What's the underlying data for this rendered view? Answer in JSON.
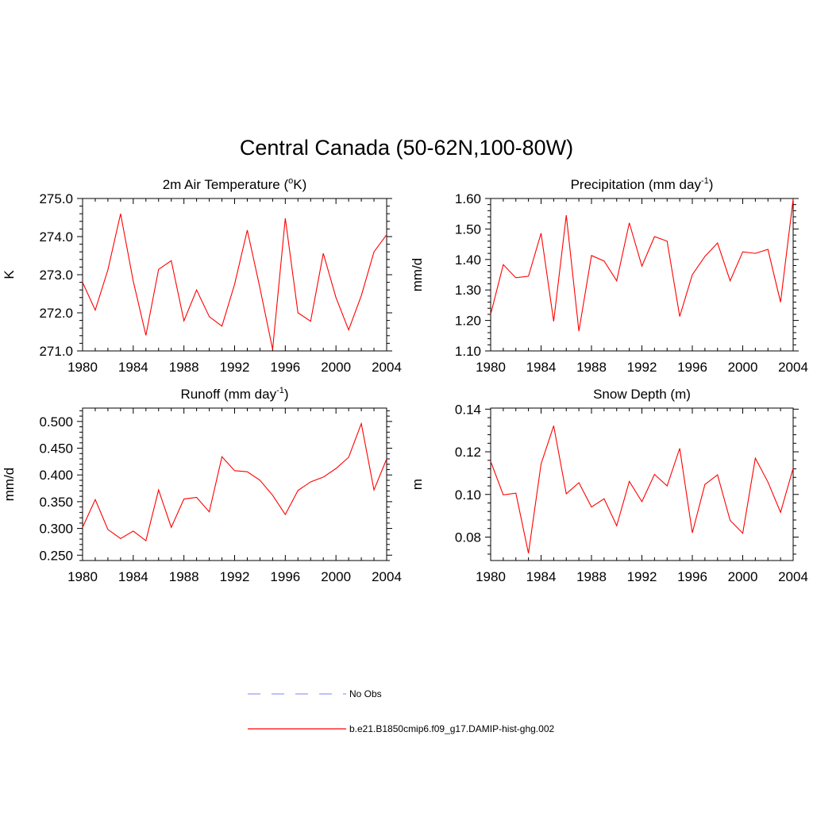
{
  "figure": {
    "title": "Central Canada (50-62N,100-80W)"
  },
  "legend": {
    "placement": "bottom-center",
    "entries": [
      {
        "label": "No Obs",
        "color": "#9999ff",
        "style": "dashed"
      },
      {
        "label": "b.e21.B1850cmip6.f09_g17.DAMIP-hist-ghg.002",
        "color": "#ff0000",
        "style": "solid"
      }
    ]
  },
  "chart_data": [
    {
      "type": "line",
      "title": "2m Air Temperature (",
      "title_sup": "o",
      "title_after": "K)",
      "xlabel": "",
      "ylabel": "K",
      "xlim": [
        1980,
        2004
      ],
      "ylim": [
        271.0,
        275.0
      ],
      "xticks": [
        "1980",
        "1984",
        "1988",
        "1992",
        "1996",
        "2000",
        "2004"
      ],
      "yticks": [
        "271.0",
        "272.0",
        "273.0",
        "274.0",
        "275.0"
      ],
      "x": [
        1980,
        1981,
        1982,
        1983,
        1984,
        1985,
        1986,
        1987,
        1988,
        1989,
        1990,
        1991,
        1992,
        1993,
        1994,
        1995,
        1996,
        1997,
        1998,
        1999,
        2000,
        2001,
        2002,
        2003,
        2004
      ],
      "series": [
        {
          "name": "b.e21.B1850cmip6.f09_g17.DAMIP-hist-ghg.002",
          "color": "#ff0000",
          "values": [
            272.8,
            272.07,
            273.13,
            274.6,
            272.83,
            271.41,
            273.14,
            273.37,
            271.79,
            272.6,
            271.9,
            271.65,
            272.75,
            274.17,
            272.65,
            271.04,
            274.48,
            272.0,
            271.78,
            273.56,
            272.4,
            271.55,
            272.45,
            273.6,
            274.05
          ]
        }
      ]
    },
    {
      "type": "line",
      "title": "Precipitation (mm day",
      "title_sup": "-1",
      "title_after": ")",
      "xlabel": "",
      "ylabel": "mm/d",
      "xlim": [
        1980,
        2004
      ],
      "ylim": [
        1.1,
        1.6
      ],
      "xticks": [
        "1980",
        "1984",
        "1988",
        "1992",
        "1996",
        "2000",
        "2004"
      ],
      "yticks": [
        "1.10",
        "1.20",
        "1.30",
        "1.40",
        "1.50",
        "1.60"
      ],
      "x": [
        1980,
        1981,
        1982,
        1983,
        1984,
        1985,
        1986,
        1987,
        1988,
        1989,
        1990,
        1991,
        1992,
        1993,
        1994,
        1995,
        1996,
        1997,
        1998,
        1999,
        2000,
        2001,
        2002,
        2003,
        2004
      ],
      "series": [
        {
          "name": "b.e21.B1850cmip6.f09_g17.DAMIP-hist-ghg.002",
          "color": "#ff0000",
          "values": [
            1.22,
            1.383,
            1.34,
            1.345,
            1.486,
            1.197,
            1.545,
            1.165,
            1.413,
            1.395,
            1.33,
            1.52,
            1.378,
            1.475,
            1.46,
            1.213,
            1.35,
            1.41,
            1.454,
            1.33,
            1.425,
            1.42,
            1.433,
            1.26,
            1.598
          ]
        }
      ]
    },
    {
      "type": "line",
      "title": "Runoff (mm day",
      "title_sup": "-1",
      "title_after": ")",
      "xlabel": "",
      "ylabel": "mm/d",
      "xlim": [
        1980,
        2004
      ],
      "ylim": [
        0.24,
        0.525
      ],
      "xticks": [
        "1980",
        "1984",
        "1988",
        "1992",
        "1996",
        "2000",
        "2004"
      ],
      "yticks": [
        "0.250",
        "0.300",
        "0.350",
        "0.400",
        "0.450",
        "0.500"
      ],
      "x": [
        1980,
        1981,
        1982,
        1983,
        1984,
        1985,
        1986,
        1987,
        1988,
        1989,
        1990,
        1991,
        1992,
        1993,
        1994,
        1995,
        1996,
        1997,
        1998,
        1999,
        2000,
        2001,
        2002,
        2003,
        2004
      ],
      "series": [
        {
          "name": "b.e21.B1850cmip6.f09_g17.DAMIP-hist-ghg.002",
          "color": "#ff0000",
          "values": [
            0.302,
            0.354,
            0.298,
            0.281,
            0.295,
            0.277,
            0.372,
            0.302,
            0.355,
            0.358,
            0.331,
            0.434,
            0.408,
            0.406,
            0.39,
            0.362,
            0.326,
            0.371,
            0.387,
            0.396,
            0.412,
            0.433,
            0.496,
            0.372,
            0.43
          ]
        }
      ]
    },
    {
      "type": "line",
      "title": "Snow Depth (m)",
      "title_sup": "",
      "title_after": "",
      "xlabel": "",
      "ylabel": "m",
      "xlim": [
        1980,
        2004
      ],
      "ylim": [
        0.069,
        0.1405
      ],
      "xticks": [
        "1980",
        "1984",
        "1988",
        "1992",
        "1996",
        "2000",
        "2004"
      ],
      "yticks": [
        "0.08",
        "0.10",
        "0.12",
        "0.14"
      ],
      "x": [
        1980,
        1981,
        1982,
        1983,
        1984,
        1985,
        1986,
        1987,
        1988,
        1989,
        1990,
        1991,
        1992,
        1993,
        1994,
        1995,
        1996,
        1997,
        1998,
        1999,
        2000,
        2001,
        2002,
        2003,
        2004
      ],
      "series": [
        {
          "name": "b.e21.B1850cmip6.f09_g17.DAMIP-hist-ghg.002",
          "color": "#ff0000",
          "values": [
            0.1155,
            0.0998,
            0.1006,
            0.0724,
            0.1143,
            0.1322,
            0.1003,
            0.1055,
            0.0941,
            0.098,
            0.0853,
            0.1061,
            0.0966,
            0.1094,
            0.104,
            0.1216,
            0.082,
            0.1047,
            0.1092,
            0.0878,
            0.0818,
            0.117,
            0.1058,
            0.0916,
            0.1123
          ]
        }
      ]
    }
  ]
}
